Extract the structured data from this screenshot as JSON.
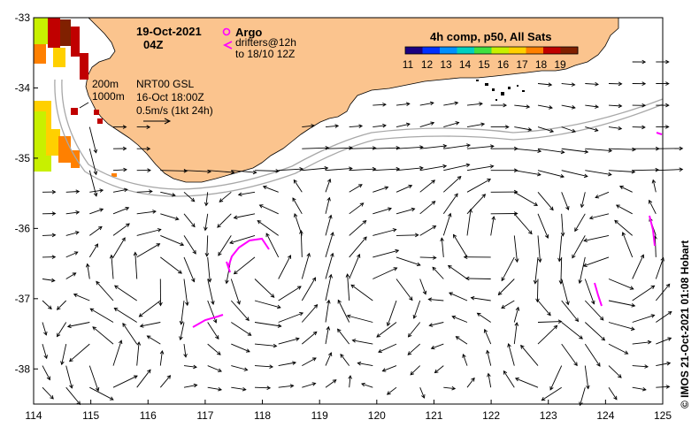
{
  "chart_data": {
    "type": "map",
    "title_date": "19-Oct-2021",
    "title_time": "04Z",
    "x_ticks": [
      "114",
      "115",
      "116",
      "117",
      "118",
      "119",
      "120",
      "121",
      "122",
      "123",
      "124",
      "125"
    ],
    "y_ticks": [
      "-33",
      "-34",
      "-35",
      "-36",
      "-37",
      "-38"
    ],
    "xlim": [
      114,
      125
    ],
    "ylim": [
      -38.5,
      -33
    ],
    "isobaths": [
      "200m",
      "1000m"
    ],
    "altimetry_product": "NRT00 GSL",
    "altimetry_time": "16-Oct 18:00Z",
    "velocity_scale_label": "0.5m/s (1kt 24h)",
    "legend": {
      "argo_label": "Argo",
      "drifter_label_1": "drifters@12h",
      "drifter_label_2": "to 18/10 12Z",
      "argo_color": "#ff00ff",
      "drifter_color": "#ff00ff"
    },
    "colorbar": {
      "title": "4h comp, p50, All Sats",
      "ticks": [
        "11",
        "12",
        "13",
        "14",
        "15",
        "16",
        "17",
        "18",
        "19"
      ],
      "colors": [
        "#1a0080",
        "#0030ff",
        "#0090ff",
        "#00d0c0",
        "#40e040",
        "#c8f000",
        "#ffd000",
        "#ff8000",
        "#c00000",
        "#802000"
      ]
    },
    "credit": "© IMOS 21-Oct-2021 01:08 Hobart",
    "colors": {
      "land": "#fbc48e",
      "isobath": "#a8a8a8",
      "arrow": "#000000"
    }
  }
}
